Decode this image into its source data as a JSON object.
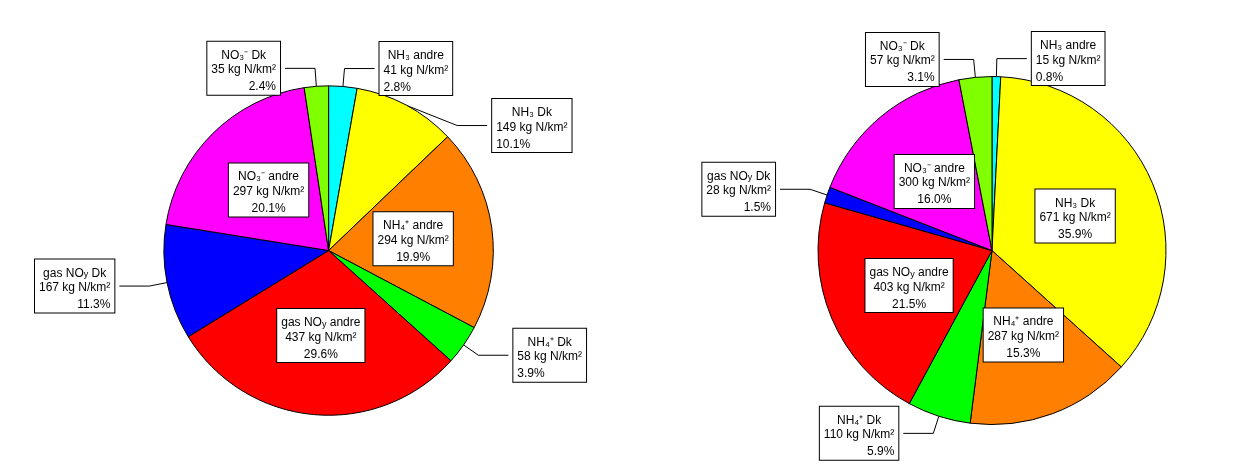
{
  "chart_data": [
    {
      "type": "pie",
      "categories": [
        "NH₃ andre",
        "NH₃ Dk",
        "NH₄⁺ andre",
        "NH₄⁺ Dk",
        "gas NO$_{y}$ andre",
        "gas NO$_{y}$ Dk",
        "NO₃⁻ andre",
        "NO₃⁻ Dk"
      ],
      "values": [
        41,
        149,
        294,
        58,
        437,
        167,
        297,
        35
      ],
      "colors": [
        "#00ffff",
        "#ffff00",
        "#ff8000",
        "#00ff00",
        "#ff0000",
        "#0000ff",
        "#ff00ff",
        "#80ff00"
      ],
      "value_labels": [
        "41 kg N/km²\n2.8%",
        "149 kg N/km²\n10.1%",
        "294 kg N/km²\n19.9%",
        "58 kg N/km²\n3.9%",
        "437 kg N/km²\n29.6%",
        "167 kg N/km²\n11.3%",
        "297 kg N/km²\n20.1%",
        "35 kg N/km²\n2.4%"
      ]
    },
    {
      "type": "pie",
      "categories": [
        "NH₃ andre",
        "NH₃ Dk",
        "NH₄⁺ andre",
        "NH₄⁺ Dk",
        "gas NO$_{y}$ andre",
        "gas NO$_{y}$ Dk",
        "NO₃⁻ andre",
        "NO₃⁻ Dk"
      ],
      "values": [
        15,
        671,
        287,
        110,
        403,
        28,
        300,
        57
      ],
      "colors": [
        "#00ffff",
        "#ffff00",
        "#ff8000",
        "#00ff00",
        "#ff0000",
        "#0000ff",
        "#ff00ff",
        "#80ff00"
      ],
      "value_labels": [
        "15 kg N/km²\n0.8%",
        "671 kg N/km²\n35.9%",
        "287 kg N/km²\n15.3%",
        "110 kg N/km²\n5.9%",
        "403 kg N/km²\n21.5%",
        "28 kg N/km²\n1.5%",
        "300 kg N/km²\n16.0%",
        "57 kg N/km²\n3.1%"
      ]
    }
  ]
}
